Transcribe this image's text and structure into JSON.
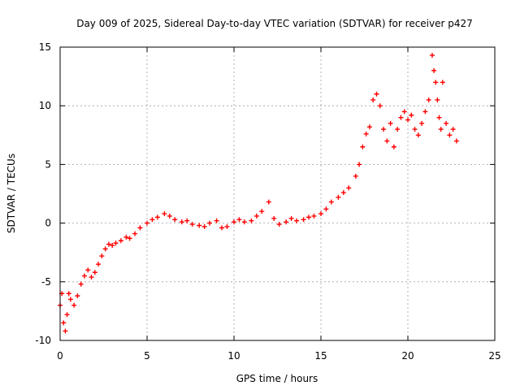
{
  "chart_data": {
    "type": "scatter",
    "title": "Day 009 of 2025, Sidereal Day-to-day VTEC variation (SDTVAR) for receiver p427",
    "xlabel": "GPS time / hours",
    "ylabel": "SDTVAR / TECUs",
    "xlim": [
      0,
      25
    ],
    "ylim": [
      -10,
      15
    ],
    "xticks": [
      0,
      5,
      10,
      15,
      20,
      25
    ],
    "yticks": [
      -10,
      -5,
      0,
      5,
      10,
      15
    ],
    "grid": true,
    "marker": "+",
    "color": "#ff0000",
    "series": [
      {
        "name": "SDTVAR",
        "x": [
          0.0,
          0.1,
          0.2,
          0.3,
          0.4,
          0.5,
          0.6,
          0.8,
          1.0,
          1.2,
          1.4,
          1.6,
          1.8,
          2.0,
          2.2,
          2.4,
          2.6,
          2.8,
          3.0,
          3.2,
          3.5,
          3.8,
          4.0,
          4.3,
          4.6,
          5.0,
          5.3,
          5.6,
          6.0,
          6.3,
          6.6,
          7.0,
          7.3,
          7.6,
          8.0,
          8.3,
          8.6,
          9.0,
          9.3,
          9.6,
          10.0,
          10.3,
          10.6,
          11.0,
          11.3,
          11.6,
          12.0,
          12.3,
          12.6,
          13.0,
          13.3,
          13.6,
          14.0,
          14.3,
          14.6,
          15.0,
          15.3,
          15.6,
          16.0,
          16.3,
          16.6,
          17.0,
          17.2,
          17.4,
          17.6,
          17.8,
          18.0,
          18.2,
          18.4,
          18.6,
          18.8,
          19.0,
          19.2,
          19.4,
          19.6,
          19.8,
          20.0,
          20.2,
          20.4,
          20.6,
          20.8,
          21.0,
          21.2,
          21.4,
          21.5,
          21.6,
          21.7,
          21.8,
          21.9,
          22.0,
          22.2,
          22.4,
          22.6,
          22.8
        ],
        "y": [
          -7.0,
          -6.0,
          -8.5,
          -9.2,
          -7.8,
          -6.0,
          -6.5,
          -7.0,
          -6.2,
          -5.2,
          -4.5,
          -4.0,
          -4.6,
          -4.2,
          -3.5,
          -2.8,
          -2.2,
          -1.8,
          -1.9,
          -1.7,
          -1.5,
          -1.2,
          -1.3,
          -0.9,
          -0.4,
          0.0,
          0.3,
          0.5,
          0.8,
          0.6,
          0.3,
          0.1,
          0.2,
          -0.1,
          -0.2,
          -0.3,
          0.0,
          0.2,
          -0.4,
          -0.3,
          0.1,
          0.3,
          0.1,
          0.2,
          0.6,
          1.0,
          1.8,
          0.4,
          -0.1,
          0.1,
          0.4,
          0.2,
          0.3,
          0.5,
          0.6,
          0.8,
          1.2,
          1.8,
          2.2,
          2.6,
          3.0,
          4.0,
          5.0,
          6.5,
          7.6,
          8.2,
          10.5,
          11.0,
          10.0,
          8.0,
          7.0,
          8.5,
          6.5,
          8.0,
          9.0,
          9.5,
          8.8,
          9.2,
          8.0,
          7.5,
          8.5,
          9.5,
          10.5,
          14.3,
          13.0,
          12.0,
          10.5,
          9.0,
          8.0,
          12.0,
          8.5,
          7.5,
          8.0,
          7.0
        ]
      }
    ]
  }
}
